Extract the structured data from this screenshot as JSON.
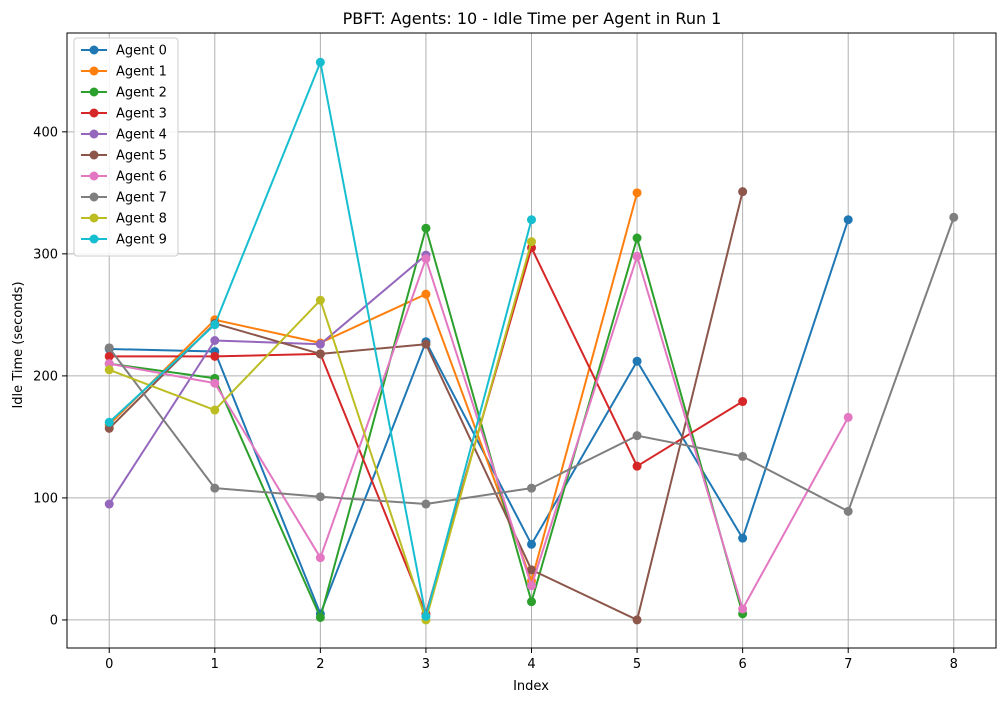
{
  "chart_data": {
    "type": "line",
    "title": "PBFT: Agents: 10 - Idle Time per Agent in Run 1",
    "xlabel": "Index",
    "ylabel": "Idle Time (seconds)",
    "xlim": [
      -0.4,
      8.4
    ],
    "ylim": [
      -23,
      481
    ],
    "x_ticks": [
      0,
      1,
      2,
      3,
      4,
      5,
      6,
      7,
      8
    ],
    "y_ticks": [
      0,
      100,
      200,
      300,
      400
    ],
    "grid": true,
    "legend_position": "top-left",
    "series": [
      {
        "name": "Agent 0",
        "color": "#1f77b4",
        "x": [
          0,
          1,
          2,
          3,
          4,
          5,
          6,
          7
        ],
        "values": [
          222,
          220,
          5,
          228,
          62,
          212,
          67,
          328
        ]
      },
      {
        "name": "Agent 1",
        "color": "#ff7f0e",
        "x": [
          0,
          1,
          2,
          3,
          4,
          5
        ],
        "values": [
          160,
          246,
          227,
          267,
          32,
          350
        ]
      },
      {
        "name": "Agent 2",
        "color": "#2ca02c",
        "x": [
          0,
          1,
          2,
          3,
          4,
          5,
          6
        ],
        "values": [
          210,
          198,
          2,
          321,
          15,
          313,
          5
        ]
      },
      {
        "name": "Agent 3",
        "color": "#d62728",
        "x": [
          0,
          1,
          2,
          3,
          4,
          5,
          6
        ],
        "values": [
          216,
          216,
          218,
          5,
          305,
          126,
          179
        ]
      },
      {
        "name": "Agent 4",
        "color": "#9467bd",
        "x": [
          0,
          1,
          2,
          3
        ],
        "values": [
          95,
          229,
          226,
          299
        ]
      },
      {
        "name": "Agent 5",
        "color": "#8c564b",
        "x": [
          0,
          1,
          2,
          3,
          4,
          5,
          6
        ],
        "values": [
          157,
          243,
          218,
          226,
          41,
          0,
          351
        ]
      },
      {
        "name": "Agent 6",
        "color": "#e377c2",
        "x": [
          0,
          1,
          2,
          3,
          4,
          5,
          6,
          7
        ],
        "values": [
          210,
          194,
          51,
          296,
          28,
          298,
          9,
          166
        ]
      },
      {
        "name": "Agent 7",
        "color": "#7f7f7f",
        "x": [
          0,
          1,
          2,
          3,
          4,
          5,
          6,
          7,
          8
        ],
        "values": [
          223,
          108,
          101,
          95,
          108,
          151,
          134,
          89,
          330
        ]
      },
      {
        "name": "Agent 8",
        "color": "#bcbd22",
        "x": [
          0,
          1,
          2,
          3,
          4
        ],
        "values": [
          205,
          172,
          262,
          0,
          310
        ]
      },
      {
        "name": "Agent 9",
        "color": "#17becf",
        "x": [
          0,
          1,
          2,
          3,
          4
        ],
        "values": [
          162,
          242,
          457,
          3,
          328
        ]
      }
    ]
  }
}
